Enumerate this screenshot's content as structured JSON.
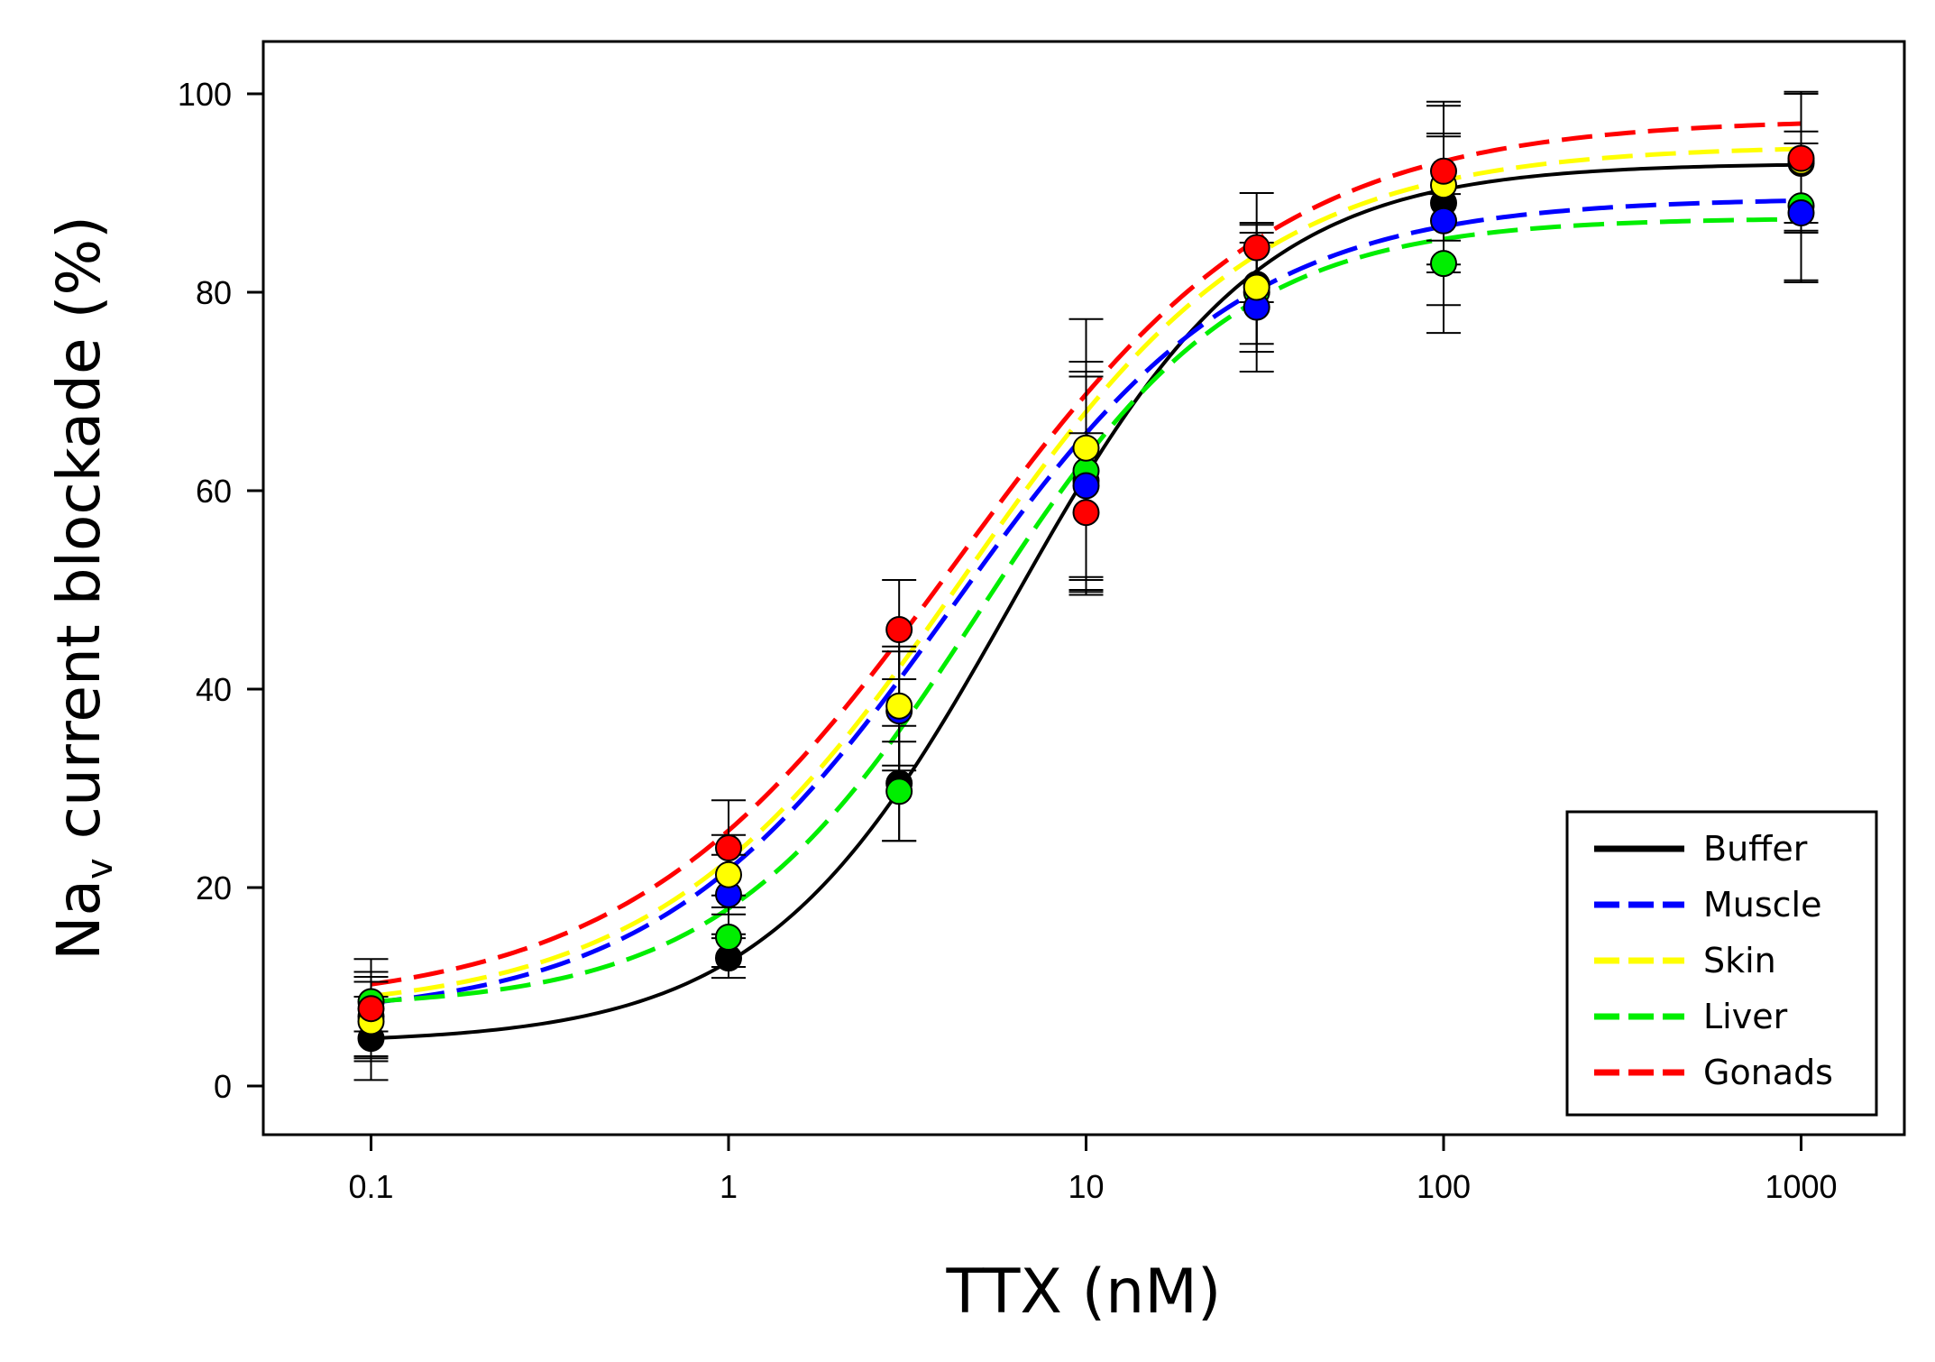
{
  "chart_data": {
    "type": "scatter",
    "title": "",
    "xlabel": "TTX (nM)",
    "ylabel": {
      "main": "Na",
      "subscript": "v",
      "rest": " current blockade (%)"
    },
    "xscale": "log",
    "xlim": [
      0.05,
      3000
    ],
    "ylim": [
      -5,
      105
    ],
    "grid": false,
    "legend_position": "bottom-right",
    "x_ticks": [
      0.1,
      1,
      10,
      100,
      1000
    ],
    "x_tick_labels": [
      "0.1",
      "1",
      "10",
      "100",
      "1000"
    ],
    "y_ticks": [
      0,
      20,
      40,
      60,
      80,
      100
    ],
    "y_tick_labels": [
      "0",
      "20",
      "40",
      "60",
      "80",
      "100"
    ],
    "x": [
      0.1,
      1,
      3,
      10,
      30,
      100,
      1000
    ],
    "series": [
      {
        "name": "Buffer",
        "color": "#000000",
        "line_style": "solid",
        "values": [
          4.8,
          12.9,
          30.5,
          61.0,
          80.8,
          89.0,
          93.0
        ],
        "errors": [
          4.2,
          2.0,
          5.8,
          11.0,
          6.0,
          7.0,
          7.0
        ],
        "fit": {
          "bottom": 4.3,
          "top": 93.0,
          "ec50": 6.2,
          "hill": 1.25
        }
      },
      {
        "name": "Muscle",
        "color": "#0000ff",
        "line_style": "dashed",
        "values": [
          7.0,
          19.3,
          37.8,
          60.5,
          78.5,
          87.2,
          88.0
        ],
        "errors": [
          4.0,
          4.0,
          6.0,
          11.0,
          6.5,
          8.5,
          7.0
        ],
        "fit": {
          "bottom": 6.8,
          "top": 89.5,
          "ec50": 4.2,
          "hill": 1.05
        }
      },
      {
        "name": "Skin",
        "color": "#ffff00",
        "line_style": "dashed",
        "values": [
          6.5,
          21.3,
          38.3,
          64.3,
          80.5,
          90.8,
          93.2
        ],
        "errors": [
          4.0,
          4.0,
          6.0,
          13.0,
          6.5,
          8.0,
          7.0
        ],
        "fit": {
          "bottom": 7.3,
          "top": 94.8,
          "ec50": 4.5,
          "hill": 1.02
        }
      },
      {
        "name": "Liver",
        "color": "#00ee00",
        "line_style": "dashed",
        "values": [
          8.5,
          15.0,
          29.7,
          62.0,
          80.0,
          82.9,
          88.7
        ],
        "errors": [
          3.0,
          3.0,
          5.0,
          11.0,
          6.0,
          7.0,
          7.5
        ],
        "fit": {
          "bottom": 7.8,
          "top": 87.5,
          "ec50": 5.0,
          "hill": 1.2
        }
      },
      {
        "name": "Gonads",
        "color": "#ff0000",
        "line_style": "dashed",
        "values": [
          7.8,
          24.0,
          46.0,
          57.8,
          84.5,
          92.2,
          93.5
        ],
        "errors": [
          5.0,
          4.8,
          5.0,
          8.0,
          5.5,
          7.0,
          6.5
        ],
        "fit": {
          "bottom": 7.8,
          "top": 97.5,
          "ec50": 4.3,
          "hill": 0.95
        }
      }
    ]
  }
}
